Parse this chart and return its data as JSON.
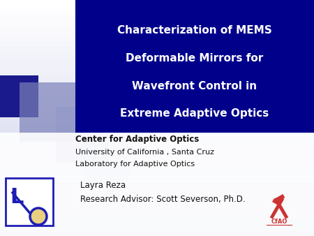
{
  "title_lines": [
    "Characterization of MEMS",
    "Deformable Mirrors for",
    "Wavefront Control in",
    "Extreme Adaptive Optics"
  ],
  "subtitle_bold": "Center for Adaptive Optics",
  "subtitle_lines": [
    "University of California , Santa Cruz",
    "Laboratory for Adaptive Optics"
  ],
  "author_line1": "Layra Reza",
  "author_line2": "Research Advisor: Scott Severson, Ph.D.",
  "bg_top_color": "#ffffff",
  "bg_bottom_color": "#c8cce8",
  "title_box_color": "#00008b",
  "title_text_color": "#ffffff",
  "subtitle_text_color": "#111111",
  "sq1_color": "#7b80b8",
  "sq2_color": "#9198c8",
  "sq3_color": "#a8aed5",
  "sq_dark_color": "#1a1a8c",
  "white_bg": "#ffffff",
  "lao_blue": "#1e1eb4",
  "lao_yellow": "#e8d080",
  "cfao_red": "#cc3333"
}
